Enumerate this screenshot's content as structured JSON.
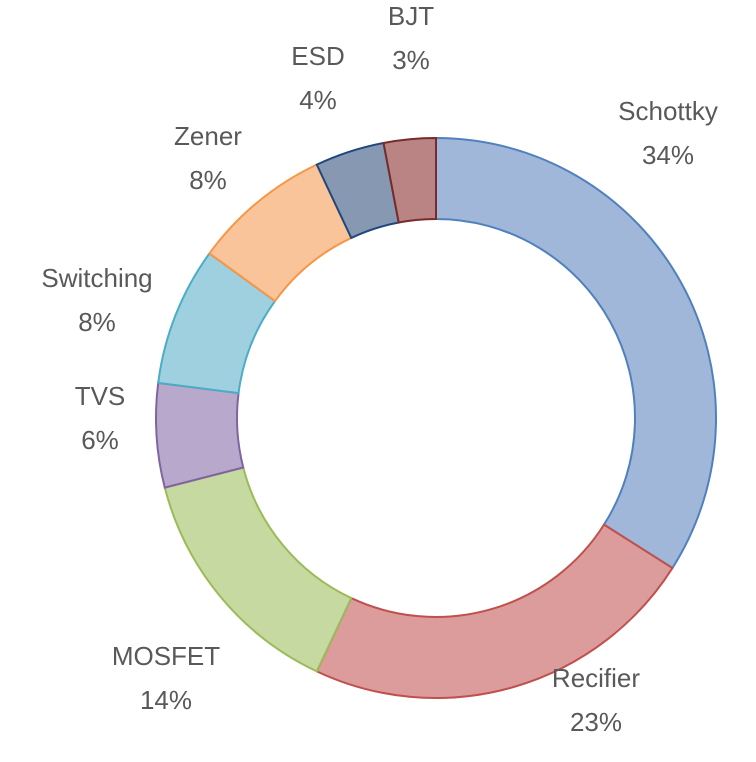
{
  "chart_data": {
    "type": "donut",
    "categories": [
      "Schottky",
      "Recifier",
      "MOSFET",
      "TVS",
      "Switching",
      "Zener",
      "ESD",
      "BJT"
    ],
    "values": [
      34,
      23,
      14,
      6,
      8,
      8,
      4,
      3
    ],
    "value_labels": [
      "34%",
      "23%",
      "14%",
      "6%",
      "8%",
      "8%",
      "4%",
      "3%"
    ],
    "colors": [
      "#a0b7da",
      "#dc9c9b",
      "#c5d9a1",
      "#b8a8cb",
      "#9ed0df",
      "#f9c49a",
      "#8798b2",
      "#b98483"
    ],
    "edge_colors": [
      "#4f81bd",
      "#c0504d",
      "#9bbb59",
      "#8064a2",
      "#4bacc6",
      "#f79646",
      "#1f497d",
      "#772c2a"
    ]
  }
}
